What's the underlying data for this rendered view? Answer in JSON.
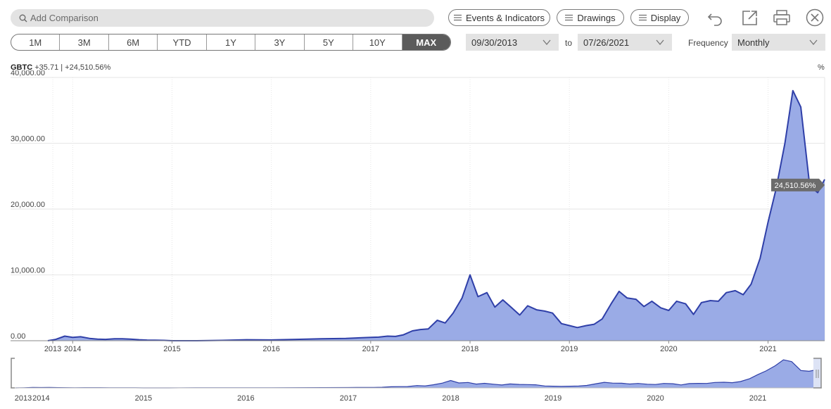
{
  "search": {
    "placeholder": "Add Comparison"
  },
  "toolbar": {
    "events_label": "Events & Indicators",
    "drawings_label": "Drawings",
    "display_label": "Display"
  },
  "icons": [
    "search-icon",
    "undo-icon",
    "share-icon",
    "print-icon",
    "close-icon",
    "chevron-down-icon"
  ],
  "ranges": [
    "1M",
    "3M",
    "6M",
    "YTD",
    "1Y",
    "3Y",
    "5Y",
    "10Y",
    "MAX"
  ],
  "active_range": "MAX",
  "dates": {
    "from": "09/30/2013",
    "to_label": "to",
    "to": "07/26/2021"
  },
  "frequency": {
    "label": "Frequency",
    "value": "Monthly"
  },
  "ticker": {
    "symbol": "GBTC",
    "change": "+35.71",
    "separator": "|",
    "pct": "+24,510.56%"
  },
  "unit_label": "%",
  "colors": {
    "line": "#2f3fa8",
    "fill": "#9aabe6",
    "active_range_bg": "#5b5b5b"
  },
  "chart_data": {
    "type": "area",
    "ylim": [
      0,
      40000
    ],
    "y_ticks": [
      0,
      10000,
      20000,
      30000,
      40000
    ],
    "y_tick_labels": [
      "0.00",
      "10,000.00",
      "20,000.00",
      "30,000.00",
      "40,000.00"
    ],
    "x_tick_labels": [
      "2013",
      "2014",
      "2015",
      "2016",
      "2017",
      "2018",
      "2019",
      "2020",
      "2021"
    ],
    "x_tick_years": [
      2013.8,
      2014,
      2015,
      2016,
      2017,
      2018,
      2019,
      2020,
      2021
    ],
    "x_range": [
      2013.75,
      2021.57
    ],
    "last_value_label": "24,510.56%",
    "series": [
      {
        "x": [
          2013.75,
          2013.83,
          2013.92,
          2014.0,
          2014.08,
          2014.17,
          2014.25,
          2014.33,
          2014.42,
          2014.5,
          2014.58,
          2014.67,
          2014.75,
          2014.83,
          2014.92,
          2015.0,
          2015.25,
          2015.5,
          2015.75,
          2016.0,
          2016.25,
          2016.5,
          2016.75,
          2017.0,
          2017.08,
          2017.17,
          2017.25,
          2017.33,
          2017.42,
          2017.5,
          2017.58,
          2017.67,
          2017.75,
          2017.83,
          2017.92,
          2018.0,
          2018.08,
          2018.17,
          2018.25,
          2018.33,
          2018.42,
          2018.5,
          2018.58,
          2018.67,
          2018.75,
          2018.83,
          2018.92,
          2019.0,
          2019.08,
          2019.17,
          2019.25,
          2019.33,
          2019.42,
          2019.5,
          2019.58,
          2019.67,
          2019.75,
          2019.83,
          2019.92,
          2020.0,
          2020.08,
          2020.17,
          2020.25,
          2020.33,
          2020.42,
          2020.5,
          2020.58,
          2020.67,
          2020.75,
          2020.83,
          2020.92,
          2021.0,
          2021.08,
          2021.17,
          2021.25,
          2021.33,
          2021.42,
          2021.5,
          2021.57
        ],
        "values": [
          0,
          200,
          700,
          500,
          600,
          350,
          250,
          200,
          300,
          300,
          250,
          150,
          100,
          80,
          50,
          0,
          0,
          50,
          150,
          120,
          200,
          300,
          350,
          500,
          550,
          700,
          650,
          900,
          1500,
          1700,
          1800,
          3100,
          2700,
          4200,
          6500,
          10000,
          6700,
          7300,
          5100,
          6200,
          5000,
          3900,
          5300,
          4700,
          4500,
          4200,
          2600,
          2300,
          2000,
          2300,
          2500,
          3300,
          5600,
          7500,
          6500,
          6300,
          5200,
          6000,
          5000,
          4600,
          6000,
          5600,
          4000,
          5800,
          6100,
          6000,
          7300,
          7600,
          7000,
          8600,
          12500,
          18000,
          23000,
          30000,
          38000,
          35500,
          23500,
          22500,
          24510.56
        ]
      }
    ]
  }
}
